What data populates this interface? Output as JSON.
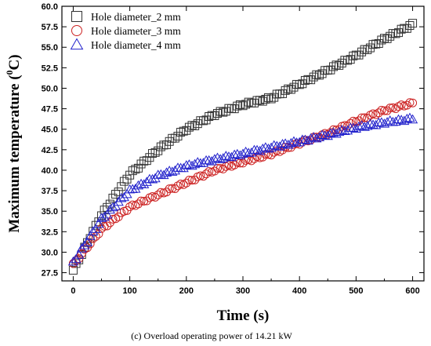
{
  "chart_data": {
    "type": "scatter",
    "title": "",
    "xlabel": "Time (s)",
    "ylabel_main": "Maximum temperature (",
    "ylabel_sup": "0",
    "ylabel_tail": "C)",
    "caption": "(c) Overload operating power of 14.21 kW",
    "xlim": [
      -20,
      620
    ],
    "ylim": [
      26.5,
      60
    ],
    "xticks": [
      0,
      100,
      200,
      300,
      400,
      500,
      600
    ],
    "xtick_labels": [
      "0",
      "100",
      "200",
      "300",
      "400",
      "500",
      "600"
    ],
    "yticks": [
      27.5,
      30,
      32.5,
      35,
      37.5,
      40,
      42.5,
      45,
      47.5,
      50,
      52.5,
      55,
      57.5,
      60
    ],
    "ytick_labels": [
      "27.5",
      "30.0",
      "32.5",
      "35.0",
      "37.5",
      "40.0",
      "42.5",
      "45.0",
      "47.5",
      "50.0",
      "52.5",
      "55.0",
      "57.5",
      "60.0"
    ],
    "legend_position": "top-left",
    "grid": false,
    "series": [
      {
        "name": "Hole diameter_2 mm",
        "marker": "square",
        "color": "#333333",
        "x": [
          0,
          50,
          100,
          150,
          200,
          250,
          300,
          350,
          400,
          450,
          500,
          550,
          600
        ],
        "y": [
          27.8,
          34.5,
          39.5,
          42.5,
          45.0,
          46.8,
          48.0,
          48.8,
          50.5,
          52.2,
          54.0,
          56.0,
          57.8
        ]
      },
      {
        "name": "Hole diameter_3 mm",
        "marker": "circle",
        "color": "#cc2222",
        "x": [
          0,
          50,
          100,
          150,
          200,
          250,
          300,
          350,
          400,
          450,
          500,
          550,
          600
        ],
        "y": [
          28.5,
          32.8,
          35.5,
          37.0,
          38.5,
          40.0,
          41.0,
          42.0,
          43.3,
          44.5,
          46.0,
          47.3,
          48.2
        ]
      },
      {
        "name": "Hole diameter_4 mm",
        "marker": "triangle",
        "color": "#2222cc",
        "x": [
          0,
          50,
          100,
          150,
          200,
          250,
          300,
          350,
          400,
          450,
          500,
          550,
          600
        ],
        "y": [
          28.7,
          34.0,
          37.5,
          39.3,
          40.5,
          41.3,
          42.0,
          42.8,
          43.5,
          44.3,
          45.2,
          45.8,
          46.3
        ]
      }
    ]
  }
}
